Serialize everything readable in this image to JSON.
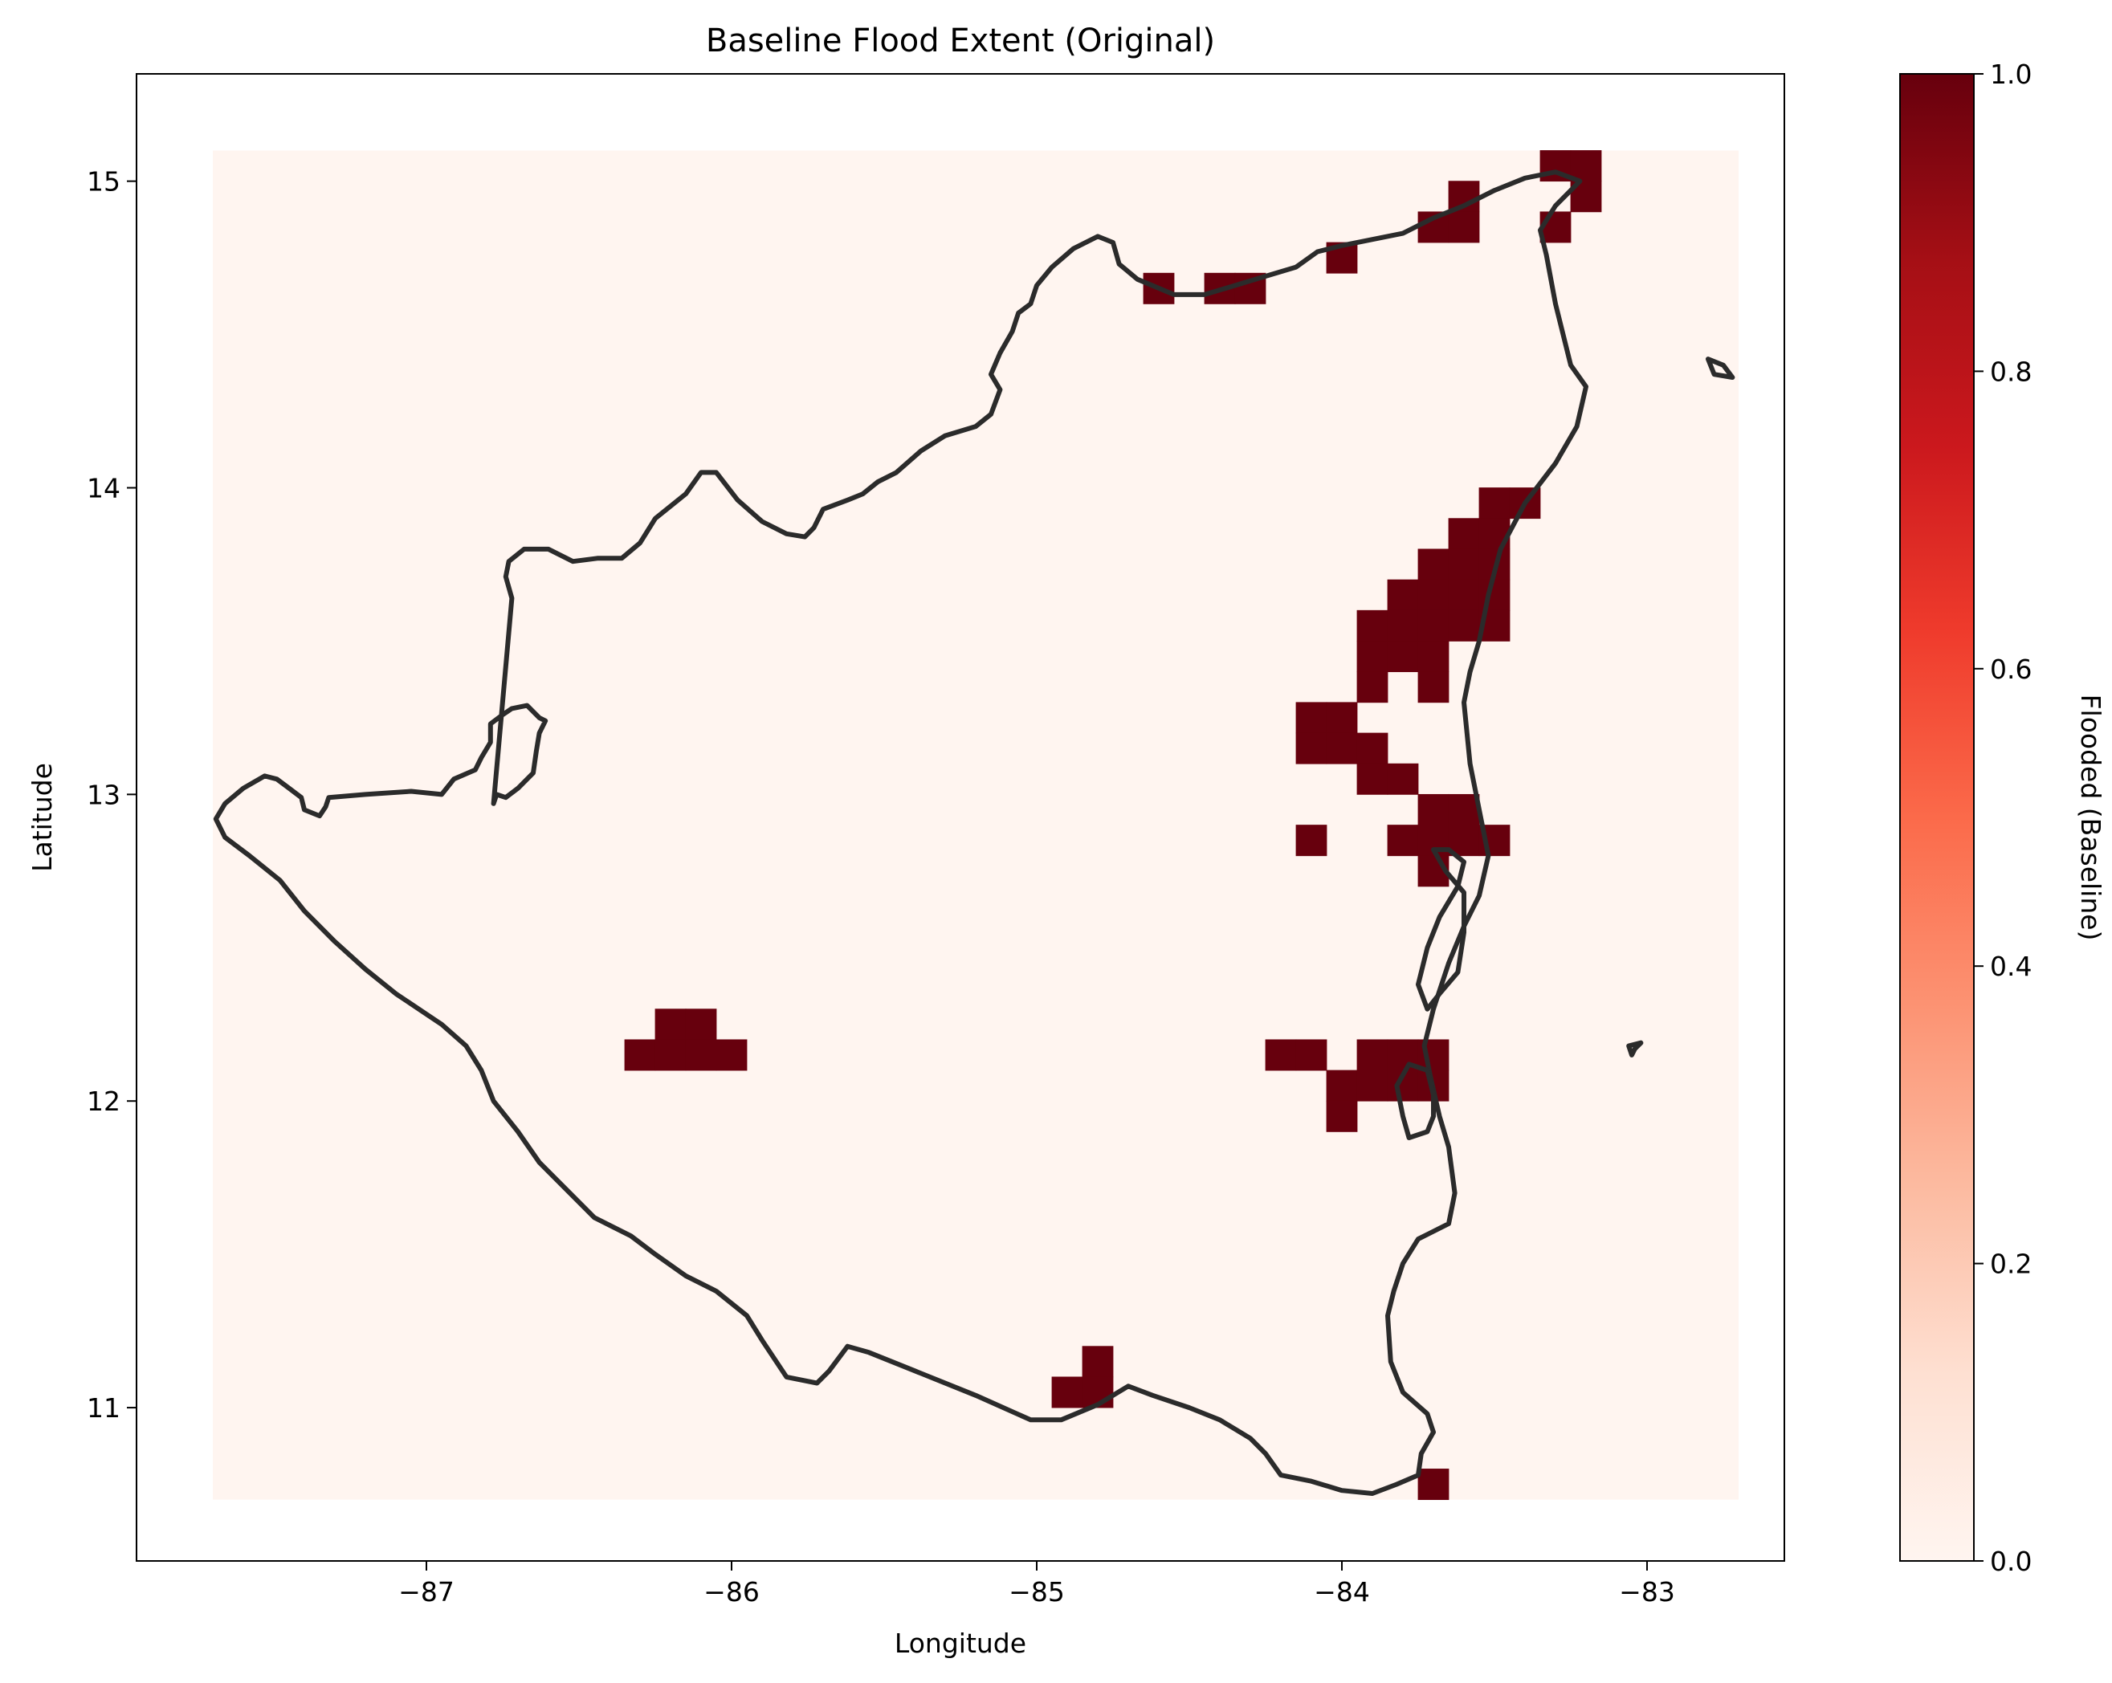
{
  "chart_data": {
    "type": "heatmap",
    "title": "Baseline Flood Extent (Original)",
    "xlabel": "Longitude",
    "ylabel": "Latitude",
    "xlim": [
      -87.95,
      -82.55
    ],
    "ylim": [
      10.5,
      15.35
    ],
    "xticks": [
      -87,
      -86,
      -85,
      -84,
      -83
    ],
    "xtick_labels": [
      "−87",
      "−86",
      "−85",
      "−84",
      "−83"
    ],
    "yticks": [
      11,
      12,
      13,
      14,
      15
    ],
    "ytick_labels": [
      "11",
      "12",
      "13",
      "14",
      "15"
    ],
    "raster_extent": {
      "lon": [
        -87.7,
        -82.7
      ],
      "lat": [
        10.7,
        15.1
      ]
    },
    "cell_size": 0.1,
    "background_value": 0,
    "flooded_cells": [
      [
        -83.3,
        15.05
      ],
      [
        -83.2,
        15.05
      ],
      [
        -83.6,
        14.95
      ],
      [
        -83.2,
        14.95
      ],
      [
        -83.7,
        14.85
      ],
      [
        -83.6,
        14.85
      ],
      [
        -83.3,
        14.85
      ],
      [
        -84.0,
        14.75
      ],
      [
        -84.6,
        14.65
      ],
      [
        -84.4,
        14.65
      ],
      [
        -84.3,
        14.65
      ],
      [
        -83.5,
        13.95
      ],
      [
        -83.4,
        13.95
      ],
      [
        -83.6,
        13.85
      ],
      [
        -83.5,
        13.85
      ],
      [
        -83.7,
        13.75
      ],
      [
        -83.6,
        13.75
      ],
      [
        -83.5,
        13.75
      ],
      [
        -83.8,
        13.65
      ],
      [
        -83.7,
        13.65
      ],
      [
        -83.6,
        13.65
      ],
      [
        -83.5,
        13.65
      ],
      [
        -83.9,
        13.55
      ],
      [
        -83.8,
        13.55
      ],
      [
        -83.7,
        13.55
      ],
      [
        -83.6,
        13.55
      ],
      [
        -83.5,
        13.55
      ],
      [
        -83.9,
        13.45
      ],
      [
        -83.8,
        13.45
      ],
      [
        -83.7,
        13.45
      ],
      [
        -83.9,
        13.35
      ],
      [
        -83.7,
        13.35
      ],
      [
        -84.1,
        13.25
      ],
      [
        -84.0,
        13.25
      ],
      [
        -84.1,
        13.15
      ],
      [
        -84.0,
        13.15
      ],
      [
        -83.9,
        13.15
      ],
      [
        -83.9,
        13.05
      ],
      [
        -83.8,
        13.05
      ],
      [
        -83.7,
        12.95
      ],
      [
        -83.6,
        12.95
      ],
      [
        -84.1,
        12.85
      ],
      [
        -83.8,
        12.85
      ],
      [
        -83.7,
        12.85
      ],
      [
        -83.6,
        12.85
      ],
      [
        -83.5,
        12.85
      ],
      [
        -83.7,
        12.75
      ],
      [
        -86.2,
        12.25
      ],
      [
        -86.1,
        12.25
      ],
      [
        -86.3,
        12.15
      ],
      [
        -86.2,
        12.15
      ],
      [
        -86.1,
        12.15
      ],
      [
        -86.0,
        12.15
      ],
      [
        -84.2,
        12.15
      ],
      [
        -84.1,
        12.15
      ],
      [
        -83.9,
        12.15
      ],
      [
        -83.8,
        12.15
      ],
      [
        -83.7,
        12.15
      ],
      [
        -84.0,
        12.05
      ],
      [
        -83.9,
        12.05
      ],
      [
        -83.8,
        12.05
      ],
      [
        -83.7,
        12.05
      ],
      [
        -84.0,
        11.95
      ],
      [
        -84.8,
        11.15
      ],
      [
        -84.9,
        11.05
      ],
      [
        -84.8,
        11.05
      ],
      [
        -83.7,
        10.75
      ]
    ],
    "outline": [
      [
        [
          -87.69,
          12.92
        ],
        [
          -87.66,
          12.97
        ],
        [
          -87.6,
          13.02
        ],
        [
          -87.53,
          13.06
        ],
        [
          -87.49,
          13.05
        ],
        [
          -87.45,
          13.02
        ],
        [
          -87.41,
          12.99
        ],
        [
          -87.4,
          12.95
        ],
        [
          -87.35,
          12.93
        ],
        [
          -87.33,
          12.96
        ],
        [
          -87.32,
          12.99
        ],
        [
          -87.2,
          13.0
        ],
        [
          -87.05,
          13.01
        ],
        [
          -86.95,
          13.0
        ],
        [
          -86.91,
          13.05
        ],
        [
          -86.84,
          13.08
        ],
        [
          -86.82,
          13.12
        ],
        [
          -86.79,
          13.17
        ],
        [
          -86.79,
          13.23
        ],
        [
          -86.75,
          13.26
        ],
        [
          -86.72,
          13.28
        ],
        [
          -86.67,
          13.29
        ],
        [
          -86.63,
          13.25
        ],
        [
          -86.61,
          13.24
        ],
        [
          -86.63,
          13.2
        ],
        [
          -86.64,
          13.14
        ],
        [
          -86.65,
          13.07
        ],
        [
          -86.7,
          13.02
        ],
        [
          -86.74,
          12.99
        ],
        [
          -86.77,
          13.0
        ],
        [
          -86.78,
          12.97
        ],
        [
          -86.72,
          13.64
        ],
        [
          -86.74,
          13.71
        ],
        [
          -86.73,
          13.76
        ],
        [
          -86.68,
          13.8
        ],
        [
          -86.6,
          13.8
        ],
        [
          -86.52,
          13.76
        ],
        [
          -86.44,
          13.77
        ],
        [
          -86.36,
          13.77
        ],
        [
          -86.3,
          13.82
        ],
        [
          -86.25,
          13.9
        ],
        [
          -86.15,
          13.98
        ],
        [
          -86.1,
          14.05
        ],
        [
          -86.05,
          14.05
        ],
        [
          -85.98,
          13.96
        ],
        [
          -85.9,
          13.89
        ],
        [
          -85.82,
          13.85
        ],
        [
          -85.76,
          13.84
        ],
        [
          -85.73,
          13.87
        ],
        [
          -85.7,
          13.93
        ],
        [
          -85.62,
          13.96
        ],
        [
          -85.57,
          13.98
        ],
        [
          -85.52,
          14.02
        ],
        [
          -85.46,
          14.05
        ],
        [
          -85.38,
          14.12
        ],
        [
          -85.3,
          14.17
        ],
        [
          -85.2,
          14.2
        ],
        [
          -85.15,
          14.24
        ],
        [
          -85.12,
          14.32
        ],
        [
          -85.15,
          14.37
        ],
        [
          -85.12,
          14.44
        ],
        [
          -85.08,
          14.51
        ],
        [
          -85.06,
          14.57
        ],
        [
          -85.02,
          14.6
        ],
        [
          -85.0,
          14.66
        ],
        [
          -84.95,
          14.72
        ],
        [
          -84.88,
          14.78
        ],
        [
          -84.8,
          14.82
        ],
        [
          -84.75,
          14.8
        ],
        [
          -84.73,
          14.73
        ],
        [
          -84.67,
          14.68
        ],
        [
          -84.55,
          14.63
        ],
        [
          -84.45,
          14.63
        ],
        [
          -84.35,
          14.66
        ],
        [
          -84.25,
          14.69
        ],
        [
          -84.15,
          14.72
        ],
        [
          -84.08,
          14.77
        ],
        [
          -84.0,
          14.79
        ],
        [
          -83.9,
          14.81
        ],
        [
          -83.8,
          14.83
        ],
        [
          -83.7,
          14.88
        ],
        [
          -83.6,
          14.92
        ],
        [
          -83.5,
          14.97
        ],
        [
          -83.4,
          15.01
        ],
        [
          -83.3,
          15.03
        ],
        [
          -83.22,
          15.0
        ],
        [
          -83.25,
          14.97
        ],
        [
          -83.3,
          14.92
        ],
        [
          -83.35,
          14.84
        ],
        [
          -83.33,
          14.76
        ],
        [
          -83.3,
          14.6
        ],
        [
          -83.25,
          14.4
        ],
        [
          -83.2,
          14.33
        ],
        [
          -83.23,
          14.2
        ],
        [
          -83.3,
          14.08
        ],
        [
          -83.4,
          13.95
        ],
        [
          -83.48,
          13.8
        ],
        [
          -83.52,
          13.65
        ],
        [
          -83.55,
          13.5
        ],
        [
          -83.58,
          13.4
        ],
        [
          -83.6,
          13.3
        ],
        [
          -83.58,
          13.1
        ],
        [
          -83.54,
          12.9
        ],
        [
          -83.52,
          12.8
        ],
        [
          -83.55,
          12.67
        ],
        [
          -83.6,
          12.57
        ],
        [
          -83.65,
          12.45
        ],
        [
          -83.7,
          12.3
        ],
        [
          -83.73,
          12.18
        ],
        [
          -83.71,
          12.08
        ],
        [
          -83.68,
          11.95
        ],
        [
          -83.65,
          11.85
        ],
        [
          -83.63,
          11.7
        ],
        [
          -83.65,
          11.6
        ],
        [
          -83.75,
          11.55
        ],
        [
          -83.8,
          11.47
        ],
        [
          -83.83,
          11.38
        ],
        [
          -83.85,
          11.3
        ],
        [
          -83.84,
          11.15
        ],
        [
          -83.8,
          11.05
        ],
        [
          -83.72,
          10.98
        ],
        [
          -83.7,
          10.92
        ],
        [
          -83.74,
          10.85
        ],
        [
          -83.75,
          10.78
        ],
        [
          -83.82,
          10.75
        ],
        [
          -83.9,
          10.72
        ],
        [
          -84.0,
          10.73
        ],
        [
          -84.1,
          10.76
        ],
        [
          -84.2,
          10.78
        ],
        [
          -84.25,
          10.85
        ],
        [
          -84.3,
          10.9
        ],
        [
          -84.4,
          10.96
        ],
        [
          -84.5,
          11.0
        ],
        [
          -84.62,
          11.04
        ],
        [
          -84.7,
          11.07
        ],
        [
          -84.8,
          11.01
        ],
        [
          -84.92,
          10.96
        ],
        [
          -85.02,
          10.96
        ],
        [
          -85.2,
          11.04
        ],
        [
          -85.4,
          11.12
        ],
        [
          -85.55,
          11.18
        ],
        [
          -85.62,
          11.2
        ],
        [
          -85.68,
          11.12
        ],
        [
          -85.72,
          11.08
        ],
        [
          -85.82,
          11.1
        ],
        [
          -85.9,
          11.22
        ],
        [
          -85.95,
          11.3
        ],
        [
          -86.05,
          11.38
        ],
        [
          -86.15,
          11.43
        ],
        [
          -86.25,
          11.5
        ],
        [
          -86.33,
          11.56
        ],
        [
          -86.45,
          11.62
        ],
        [
          -86.55,
          11.72
        ],
        [
          -86.63,
          11.8
        ],
        [
          -86.7,
          11.9
        ],
        [
          -86.78,
          12.0
        ],
        [
          -86.82,
          12.1
        ],
        [
          -86.87,
          12.18
        ],
        [
          -86.95,
          12.25
        ],
        [
          -87.1,
          12.35
        ],
        [
          -87.2,
          12.43
        ],
        [
          -87.3,
          12.52
        ],
        [
          -87.4,
          12.62
        ],
        [
          -87.48,
          12.72
        ],
        [
          -87.58,
          12.8
        ],
        [
          -87.66,
          12.86
        ],
        [
          -87.69,
          12.92
        ]
      ],
      [
        [
          -83.7,
          12.82
        ],
        [
          -83.65,
          12.82
        ],
        [
          -83.6,
          12.78
        ],
        [
          -83.62,
          12.7
        ],
        [
          -83.68,
          12.6
        ],
        [
          -83.72,
          12.5
        ],
        [
          -83.75,
          12.38
        ],
        [
          -83.72,
          12.3
        ],
        [
          -83.68,
          12.35
        ],
        [
          -83.62,
          12.42
        ],
        [
          -83.6,
          12.55
        ],
        [
          -83.6,
          12.68
        ],
        [
          -83.66,
          12.75
        ],
        [
          -83.7,
          12.82
        ]
      ],
      [
        [
          -83.7,
          12.02
        ],
        [
          -83.72,
          12.1
        ],
        [
          -83.78,
          12.12
        ],
        [
          -83.82,
          12.05
        ],
        [
          -83.8,
          11.95
        ],
        [
          -83.78,
          11.88
        ],
        [
          -83.72,
          11.9
        ],
        [
          -83.7,
          11.95
        ],
        [
          -83.7,
          12.02
        ]
      ],
      [
        [
          -82.8,
          14.42
        ],
        [
          -82.75,
          14.4
        ],
        [
          -82.72,
          14.36
        ],
        [
          -82.78,
          14.37
        ],
        [
          -82.8,
          14.42
        ]
      ],
      [
        [
          -83.04,
          12.17
        ],
        [
          -83.02,
          12.19
        ],
        [
          -83.06,
          12.18
        ],
        [
          -83.05,
          12.15
        ],
        [
          -83.04,
          12.17
        ]
      ]
    ],
    "colorbar": {
      "label": "Flooded (Baseline)",
      "range": [
        0,
        1
      ],
      "ticks": [
        0.0,
        0.2,
        0.4,
        0.6,
        0.8,
        1.0
      ],
      "tick_labels": [
        "0.0",
        "0.2",
        "0.4",
        "0.6",
        "0.8",
        "1.0"
      ],
      "colormap": "Reds"
    },
    "colors": {
      "cell_zero": "#fff5f0",
      "cell_one": "#67000d",
      "outline": "#2b2b2b"
    }
  }
}
